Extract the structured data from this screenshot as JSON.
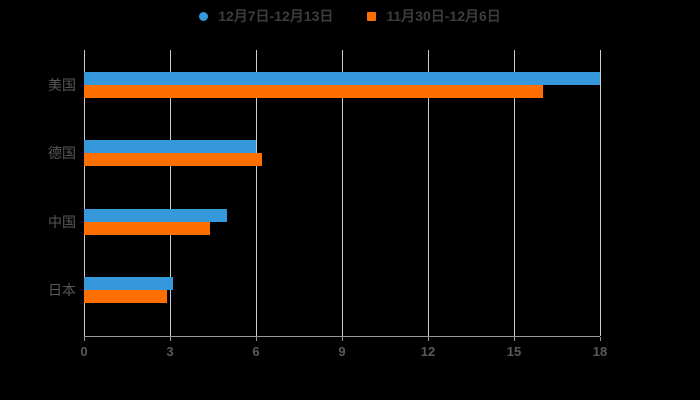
{
  "page": {
    "background_color": "#000000"
  },
  "legend": {
    "items": [
      {
        "label": "12月7日-12月13日",
        "color": "#3498DB",
        "shape": "circle"
      },
      {
        "label": "11月30日-12月6日",
        "color": "#FF6E00",
        "shape": "square"
      }
    ]
  },
  "chart_data": {
    "type": "bar",
    "orientation": "horizontal",
    "title": "",
    "xlabel": "",
    "ylabel": "",
    "categories": [
      "美国",
      "德国",
      "中国",
      "日本"
    ],
    "series": [
      {
        "name": "12月7日-12月13日",
        "color": "#3498DB",
        "values": [
          18,
          6,
          5,
          3.1
        ]
      },
      {
        "name": "11月30日-12月6日",
        "color": "#FF6E00",
        "values": [
          16,
          6.2,
          4.4,
          2.9
        ]
      }
    ],
    "xlim": [
      0,
      18
    ],
    "xticks": [
      0,
      3,
      6,
      9,
      12,
      15,
      18
    ],
    "grid": true,
    "legend_position": "top",
    "colors": {
      "grid_color": "#cccccc",
      "axis_color": "#999999",
      "tick_label_color": "#595959",
      "category_label_color": "#595959",
      "legend_text_color": "#3d3d3d"
    }
  }
}
